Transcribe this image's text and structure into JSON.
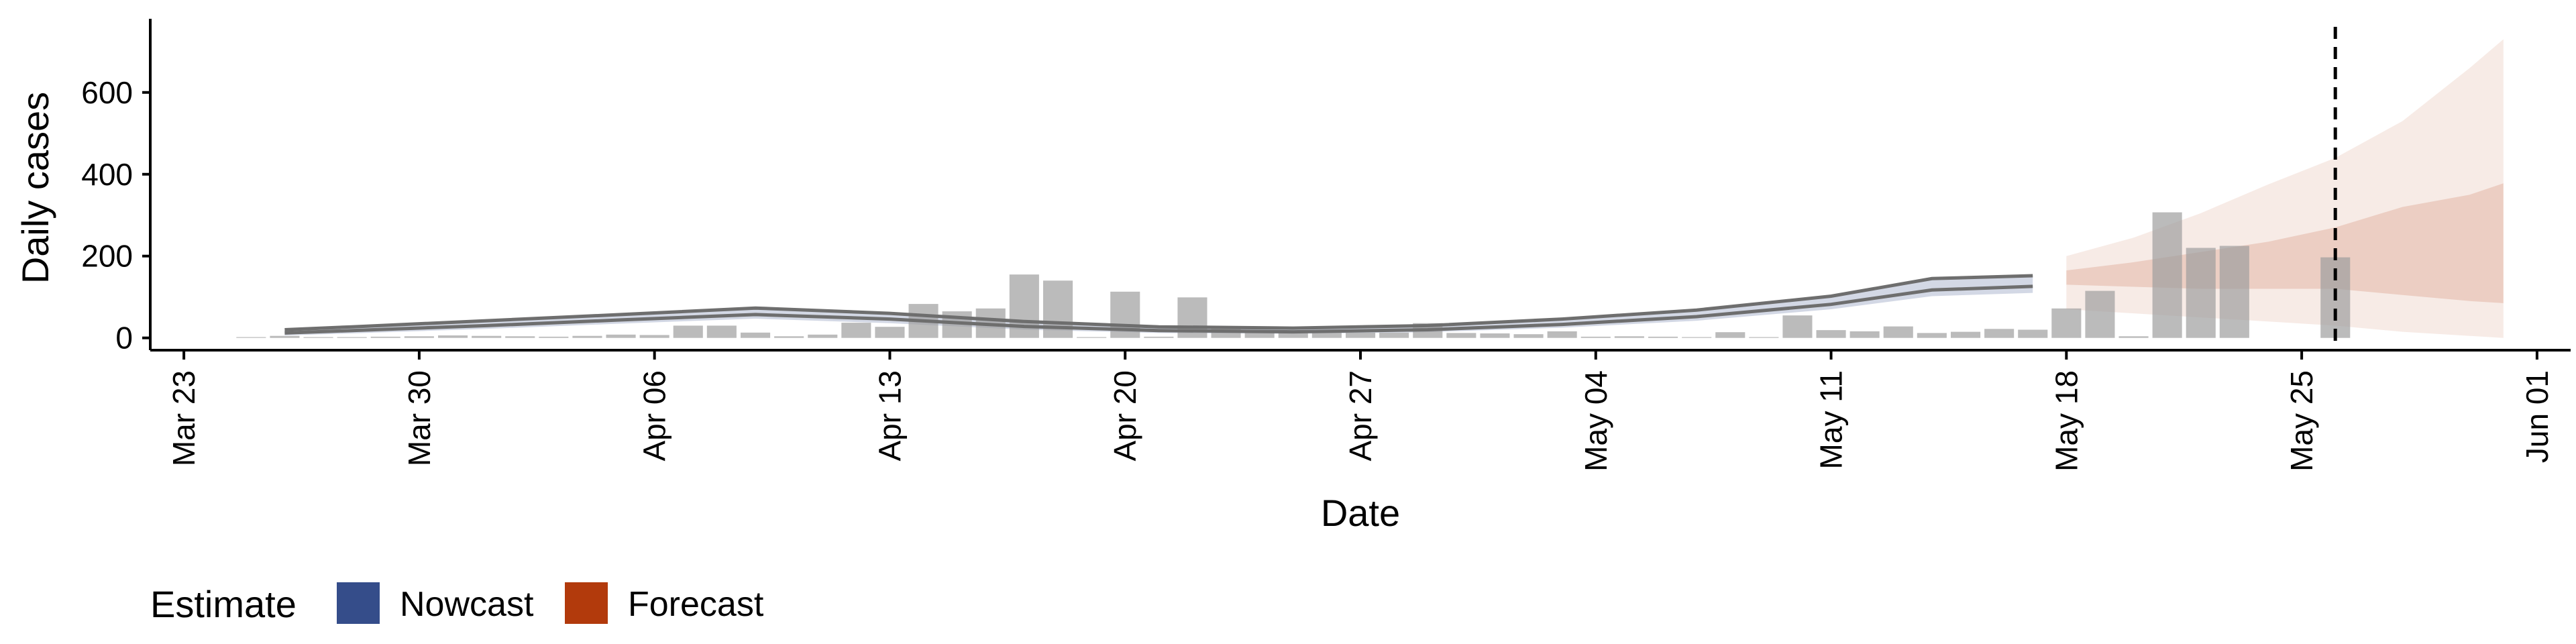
{
  "chart_data": {
    "type": "bar",
    "xlabel": "Date",
    "ylabel": "Daily cases",
    "x_range": [
      "2020-03-22",
      "2020-06-02"
    ],
    "ylim": [
      -30,
      780
    ],
    "x_ticks": [
      {
        "date": "2020-03-23",
        "label": "Mar 23"
      },
      {
        "date": "2020-03-30",
        "label": "Mar 30"
      },
      {
        "date": "2020-04-06",
        "label": "Apr 06"
      },
      {
        "date": "2020-04-13",
        "label": "Apr 13"
      },
      {
        "date": "2020-04-20",
        "label": "Apr 20"
      },
      {
        "date": "2020-04-27",
        "label": "Apr 27"
      },
      {
        "date": "2020-05-04",
        "label": "May 04"
      },
      {
        "date": "2020-05-11",
        "label": "May 11"
      },
      {
        "date": "2020-05-18",
        "label": "May 18"
      },
      {
        "date": "2020-05-25",
        "label": "May 25"
      },
      {
        "date": "2020-06-01",
        "label": "Jun 01"
      }
    ],
    "y_ticks": [
      {
        "value": 0,
        "label": "0"
      },
      {
        "value": 200,
        "label": "200"
      },
      {
        "value": 400,
        "label": "400"
      },
      {
        "value": 600,
        "label": "600"
      }
    ],
    "reported_cases": [
      {
        "date": "2020-03-25",
        "cases": 2
      },
      {
        "date": "2020-03-26",
        "cases": 5
      },
      {
        "date": "2020-03-27",
        "cases": 2
      },
      {
        "date": "2020-03-28",
        "cases": 2
      },
      {
        "date": "2020-03-29",
        "cases": 3
      },
      {
        "date": "2020-03-30",
        "cases": 4
      },
      {
        "date": "2020-03-31",
        "cases": 6
      },
      {
        "date": "2020-04-01",
        "cases": 5
      },
      {
        "date": "2020-04-02",
        "cases": 4
      },
      {
        "date": "2020-04-03",
        "cases": 3
      },
      {
        "date": "2020-04-04",
        "cases": 5
      },
      {
        "date": "2020-04-05",
        "cases": 8
      },
      {
        "date": "2020-04-06",
        "cases": 7
      },
      {
        "date": "2020-04-07",
        "cases": 30
      },
      {
        "date": "2020-04-08",
        "cases": 30
      },
      {
        "date": "2020-04-09",
        "cases": 13
      },
      {
        "date": "2020-04-10",
        "cases": 4
      },
      {
        "date": "2020-04-11",
        "cases": 8
      },
      {
        "date": "2020-04-12",
        "cases": 37
      },
      {
        "date": "2020-04-13",
        "cases": 27
      },
      {
        "date": "2020-04-14",
        "cases": 83
      },
      {
        "date": "2020-04-15",
        "cases": 65
      },
      {
        "date": "2020-04-16",
        "cases": 72
      },
      {
        "date": "2020-04-17",
        "cases": 155
      },
      {
        "date": "2020-04-18",
        "cases": 140
      },
      {
        "date": "2020-04-19",
        "cases": 2
      },
      {
        "date": "2020-04-20",
        "cases": 113
      },
      {
        "date": "2020-04-21",
        "cases": 3
      },
      {
        "date": "2020-04-22",
        "cases": 99
      },
      {
        "date": "2020-04-23",
        "cases": 26
      },
      {
        "date": "2020-04-24",
        "cases": 13
      },
      {
        "date": "2020-04-25",
        "cases": 13
      },
      {
        "date": "2020-04-26",
        "cases": 16
      },
      {
        "date": "2020-04-27",
        "cases": 13
      },
      {
        "date": "2020-04-28",
        "cases": 13
      },
      {
        "date": "2020-04-29",
        "cases": 36
      },
      {
        "date": "2020-04-30",
        "cases": 12
      },
      {
        "date": "2020-05-01",
        "cases": 11
      },
      {
        "date": "2020-05-02",
        "cases": 9
      },
      {
        "date": "2020-05-03",
        "cases": 16
      },
      {
        "date": "2020-05-04",
        "cases": 3
      },
      {
        "date": "2020-05-05",
        "cases": 4
      },
      {
        "date": "2020-05-06",
        "cases": 3
      },
      {
        "date": "2020-05-07",
        "cases": 2
      },
      {
        "date": "2020-05-08",
        "cases": 14
      },
      {
        "date": "2020-05-09",
        "cases": 2
      },
      {
        "date": "2020-05-10",
        "cases": 55
      },
      {
        "date": "2020-05-11",
        "cases": 19
      },
      {
        "date": "2020-05-12",
        "cases": 16
      },
      {
        "date": "2020-05-13",
        "cases": 28
      },
      {
        "date": "2020-05-14",
        "cases": 12
      },
      {
        "date": "2020-05-15",
        "cases": 15
      },
      {
        "date": "2020-05-16",
        "cases": 22
      },
      {
        "date": "2020-05-17",
        "cases": 20
      },
      {
        "date": "2020-05-18",
        "cases": 72
      },
      {
        "date": "2020-05-19",
        "cases": 115
      },
      {
        "date": "2020-05-20",
        "cases": 4
      },
      {
        "date": "2020-05-21",
        "cases": 307
      },
      {
        "date": "2020-05-22",
        "cases": 220
      },
      {
        "date": "2020-05-23",
        "cases": 225
      },
      {
        "date": "2020-05-24",
        "cases": 0
      },
      {
        "date": "2020-05-25",
        "cases": 0
      },
      {
        "date": "2020-05-26",
        "cases": 197
      }
    ],
    "nowcast": {
      "color": "#354D8A",
      "points": [
        {
          "date": "2020-03-26",
          "median": 12,
          "outer_low": 6,
          "outer_high": 20
        },
        {
          "date": "2020-03-28",
          "median": 18,
          "outer_low": 11,
          "outer_high": 27
        },
        {
          "date": "2020-04-01",
          "median": 30,
          "outer_low": 22,
          "outer_high": 42
        },
        {
          "date": "2020-04-05",
          "median": 44,
          "outer_low": 35,
          "outer_high": 57
        },
        {
          "date": "2020-04-09",
          "median": 57,
          "outer_low": 47,
          "outer_high": 73
        },
        {
          "date": "2020-04-13",
          "median": 46,
          "outer_low": 36,
          "outer_high": 60
        },
        {
          "date": "2020-04-17",
          "median": 28,
          "outer_low": 20,
          "outer_high": 40
        },
        {
          "date": "2020-04-21",
          "median": 18,
          "outer_low": 12,
          "outer_high": 27
        },
        {
          "date": "2020-04-25",
          "median": 15,
          "outer_low": 10,
          "outer_high": 24
        },
        {
          "date": "2020-04-29",
          "median": 20,
          "outer_low": 14,
          "outer_high": 30
        },
        {
          "date": "2020-05-03",
          "median": 33,
          "outer_low": 25,
          "outer_high": 46
        },
        {
          "date": "2020-05-07",
          "median": 52,
          "outer_low": 42,
          "outer_high": 68
        },
        {
          "date": "2020-05-11",
          "median": 82,
          "outer_low": 70,
          "outer_high": 102
        },
        {
          "date": "2020-05-14",
          "median": 117,
          "outer_low": 102,
          "outer_high": 145
        },
        {
          "date": "2020-05-17",
          "median": 126,
          "outer_low": 110,
          "outer_high": 152
        }
      ]
    },
    "forecast": {
      "color": "#B23A0C",
      "points": [
        {
          "date": "2020-05-18",
          "inner_low": 130,
          "inner_high": 165,
          "outer_low": 70,
          "outer_high": 200
        },
        {
          "date": "2020-05-20",
          "inner_low": 125,
          "inner_high": 185,
          "outer_low": 60,
          "outer_high": 245
        },
        {
          "date": "2020-05-22",
          "inner_low": 120,
          "inner_high": 210,
          "outer_low": 50,
          "outer_high": 305
        },
        {
          "date": "2020-05-24",
          "inner_low": 120,
          "inner_high": 235,
          "outer_low": 40,
          "outer_high": 375
        },
        {
          "date": "2020-05-26",
          "inner_low": 120,
          "inner_high": 270,
          "outer_low": 30,
          "outer_high": 440
        },
        {
          "date": "2020-05-28",
          "inner_low": 105,
          "inner_high": 320,
          "outer_low": 15,
          "outer_high": 530
        },
        {
          "date": "2020-05-30",
          "inner_low": 90,
          "inner_high": 350,
          "outer_low": 5,
          "outer_high": 660
        },
        {
          "date": "2020-05-31",
          "inner_low": 85,
          "inner_high": 378,
          "outer_low": 0,
          "outer_high": 730
        }
      ]
    },
    "reference_line_date": "2020-05-26",
    "legend": {
      "title": "Estimate",
      "position": "bottom-left",
      "items": [
        {
          "label": "Nowcast",
          "color": "#354D8A"
        },
        {
          "label": "Forecast",
          "color": "#B23A0C"
        }
      ]
    }
  }
}
